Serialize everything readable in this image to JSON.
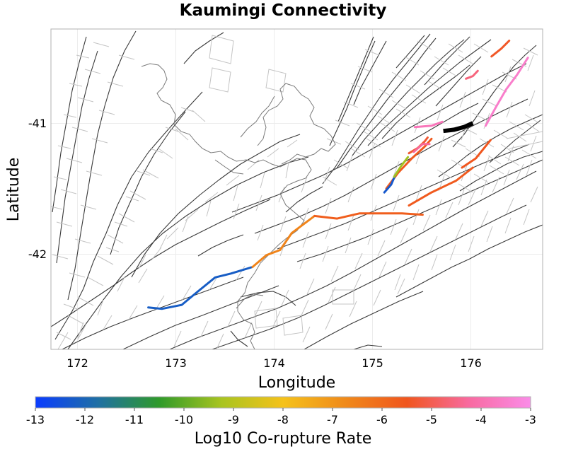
{
  "title": "Kaumingi Connectivity",
  "map": {
    "xlabel": "Longitude",
    "ylabel": "Latitude",
    "x_ticks": [
      "172",
      "173",
      "174",
      "175",
      "176"
    ],
    "y_ticks": [
      "-41",
      "-42"
    ],
    "xlim": [
      171.75,
      176.75
    ],
    "ylim": [
      -42.73,
      -40.28
    ]
  },
  "colorbar": {
    "label": "Log10 Co-rupture Rate",
    "ticks": [
      "-13",
      "-12",
      "-11",
      "-10",
      "-9",
      "-8",
      "-7",
      "-6",
      "-5",
      "-4",
      "-3"
    ],
    "range": [
      -13,
      -3
    ],
    "colors": [
      "#0a3cff",
      "#1f6fa5",
      "#2f9a2a",
      "#a8c420",
      "#f5c21a",
      "#f08a1a",
      "#f0561e",
      "#f86aa0",
      "#fa8ce8"
    ]
  },
  "chart_data": {
    "type": "map",
    "title": "Kaumingi Connectivity",
    "xlabel": "Longitude",
    "ylabel": "Latitude",
    "xlim": [
      171.75,
      176.75
    ],
    "ylim": [
      -42.73,
      -40.28
    ],
    "color_scale": {
      "label": "Log10 Co-rupture Rate",
      "min": -13,
      "max": -3
    },
    "source_fault": {
      "name": "Kaumingi",
      "color": "#000000",
      "path": [
        [
          175.74,
          -41.06
        ],
        [
          175.85,
          -41.05
        ],
        [
          175.95,
          -41.03
        ],
        [
          176.04,
          -41.0
        ]
      ]
    },
    "coruptures": [
      {
        "log10_rate": -12.2,
        "path": [
          [
            172.74,
            -42.41
          ],
          [
            172.88,
            -42.42
          ],
          [
            173.08,
            -42.39
          ],
          [
            173.24,
            -42.29
          ],
          [
            173.42,
            -42.18
          ],
          [
            173.58,
            -42.15
          ],
          [
            173.8,
            -42.1
          ]
        ]
      },
      {
        "log10_rate": -6.6,
        "path": [
          [
            173.8,
            -42.1
          ],
          [
            173.94,
            -42.01
          ],
          [
            174.08,
            -41.97
          ],
          [
            174.2,
            -41.84
          ],
          [
            174.43,
            -41.71
          ]
        ]
      },
      {
        "log10_rate": -5.7,
        "path": [
          [
            174.43,
            -41.71
          ],
          [
            174.66,
            -41.73
          ],
          [
            174.89,
            -41.69
          ],
          [
            175.1,
            -41.69
          ],
          [
            175.32,
            -41.69
          ],
          [
            175.53,
            -41.7
          ]
        ]
      },
      {
        "log10_rate": -5.6,
        "path": [
          [
            175.16,
            -41.5
          ],
          [
            175.28,
            -41.38
          ],
          [
            175.42,
            -41.27
          ],
          [
            175.55,
            -41.18
          ],
          [
            175.62,
            -41.12
          ]
        ]
      },
      {
        "log10_rate": -12.3,
        "path": [
          [
            175.14,
            -41.53
          ],
          [
            175.21,
            -41.47
          ],
          [
            175.25,
            -41.4
          ]
        ]
      },
      {
        "log10_rate": -9.3,
        "path": [
          [
            175.24,
            -41.41
          ],
          [
            175.31,
            -41.33
          ],
          [
            175.38,
            -41.26
          ]
        ]
      },
      {
        "log10_rate": -5.3,
        "path": [
          [
            175.39,
            -41.23
          ],
          [
            175.48,
            -41.19
          ],
          [
            175.55,
            -41.14
          ],
          [
            175.58,
            -41.11
          ]
        ]
      },
      {
        "log10_rate": -4.3,
        "path": [
          [
            175.44,
            -41.22
          ],
          [
            175.53,
            -41.16
          ],
          [
            175.6,
            -41.16
          ]
        ]
      },
      {
        "log10_rate": -3.8,
        "path": [
          [
            175.45,
            -41.03
          ],
          [
            175.62,
            -41.02
          ],
          [
            175.73,
            -40.99
          ]
        ]
      },
      {
        "log10_rate": -5.6,
        "path": [
          [
            175.39,
            -41.63
          ],
          [
            175.62,
            -41.53
          ],
          [
            175.87,
            -41.44
          ],
          [
            176.04,
            -41.34
          ]
        ]
      },
      {
        "log10_rate": -5.5,
        "path": [
          [
            175.93,
            -41.34
          ],
          [
            176.07,
            -41.27
          ],
          [
            176.22,
            -41.13
          ]
        ]
      },
      {
        "log10_rate": -3.5,
        "path": [
          [
            176.17,
            -41.02
          ],
          [
            176.28,
            -40.87
          ],
          [
            176.38,
            -40.74
          ],
          [
            176.49,
            -40.63
          ],
          [
            176.6,
            -40.5
          ]
        ]
      },
      {
        "log10_rate": -4.6,
        "path": [
          [
            175.97,
            -40.66
          ],
          [
            176.04,
            -40.64
          ],
          [
            176.09,
            -40.6
          ]
        ]
      },
      {
        "log10_rate": -5.4,
        "path": [
          [
            176.23,
            -40.49
          ],
          [
            176.33,
            -40.43
          ],
          [
            176.41,
            -40.37
          ]
        ]
      }
    ]
  }
}
